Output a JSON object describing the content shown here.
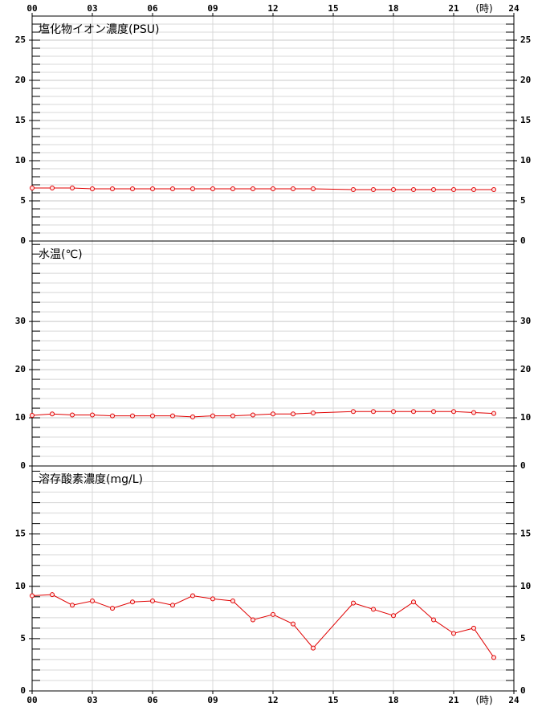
{
  "chart_data": [
    {
      "type": "line",
      "title": "塩化物イオン濃度(PSU)",
      "x": [
        0,
        1,
        2,
        3,
        4,
        5,
        6,
        7,
        8,
        9,
        10,
        11,
        12,
        13,
        14,
        16,
        17,
        18,
        19,
        20,
        21,
        22,
        23
      ],
      "series": [
        {
          "color": "#e00000",
          "values": [
            6.6,
            6.6,
            6.6,
            6.5,
            6.5,
            6.5,
            6.5,
            6.5,
            6.5,
            6.5,
            6.5,
            6.5,
            6.5,
            6.5,
            6.5,
            6.4,
            6.4,
            6.4,
            6.4,
            6.4,
            6.4,
            6.4,
            6.4
          ]
        }
      ],
      "xlim": [
        0,
        24
      ],
      "xticks": [
        {
          "value": 0,
          "label": "00"
        },
        {
          "value": 3,
          "label": "03"
        },
        {
          "value": 6,
          "label": "06"
        },
        {
          "value": 9,
          "label": "09"
        },
        {
          "value": 12,
          "label": "12"
        },
        {
          "value": 15,
          "label": "15"
        },
        {
          "value": 18,
          "label": "18"
        },
        {
          "value": 21,
          "label": "21"
        },
        {
          "value": 24,
          "label": "24"
        }
      ],
      "x_label": "(時)",
      "ylim": [
        0,
        28
      ],
      "yticks": [
        0,
        5,
        10,
        15,
        20,
        25
      ],
      "minor_yticks": [
        1,
        2,
        3,
        4,
        6,
        7,
        8,
        9,
        11,
        12,
        13,
        14,
        16,
        17,
        18,
        19,
        21,
        22,
        23,
        24,
        26,
        27,
        28
      ],
      "grid": true
    },
    {
      "type": "line",
      "title": "水温(℃)",
      "x": [
        0,
        1,
        2,
        3,
        4,
        5,
        6,
        7,
        8,
        9,
        10,
        11,
        12,
        13,
        14,
        16,
        17,
        18,
        19,
        20,
        21,
        22,
        23
      ],
      "series": [
        {
          "color": "#e00000",
          "values": [
            10.5,
            10.8,
            10.6,
            10.6,
            10.4,
            10.4,
            10.4,
            10.4,
            10.2,
            10.4,
            10.4,
            10.6,
            10.8,
            10.8,
            11.0,
            11.3,
            11.3,
            11.3,
            11.3,
            11.3,
            11.3,
            11.1,
            10.9
          ]
        }
      ],
      "xlim": [
        0,
        24
      ],
      "ylim": [
        0,
        46.7
      ],
      "yticks": [
        0,
        10,
        20,
        30
      ],
      "minor_yticks": [
        2,
        4,
        6,
        8,
        12,
        14,
        16,
        18,
        22,
        24,
        26,
        28,
        32,
        34,
        36,
        38,
        40,
        42,
        44,
        46
      ],
      "grid": true
    },
    {
      "type": "line",
      "title": "溶存酸素濃度(mg/L)",
      "x": [
        0,
        1,
        2,
        3,
        4,
        5,
        6,
        7,
        8,
        9,
        10,
        11,
        12,
        13,
        14,
        16,
        17,
        18,
        19,
        20,
        21,
        22,
        23
      ],
      "series": [
        {
          "color": "#e00000",
          "values": [
            9.1,
            9.2,
            8.2,
            8.6,
            7.9,
            8.5,
            8.6,
            8.2,
            9.1,
            8.8,
            8.6,
            6.8,
            7.3,
            6.4,
            4.1,
            8.4,
            7.8,
            7.2,
            8.5,
            6.8,
            5.5,
            6.0,
            3.2
          ]
        }
      ],
      "xlim": [
        0,
        24
      ],
      "xticks": [
        {
          "value": 0,
          "label": "00"
        },
        {
          "value": 3,
          "label": "03"
        },
        {
          "value": 6,
          "label": "06"
        },
        {
          "value": 9,
          "label": "09"
        },
        {
          "value": 12,
          "label": "12"
        },
        {
          "value": 15,
          "label": "15"
        },
        {
          "value": 18,
          "label": "18"
        },
        {
          "value": 21,
          "label": "21"
        },
        {
          "value": 24,
          "label": "24"
        }
      ],
      "x_label": "(時)",
      "ylim": [
        0,
        21.5
      ],
      "yticks": [
        0,
        5,
        10,
        15
      ],
      "minor_yticks": [
        1,
        2,
        3,
        4,
        6,
        7,
        8,
        9,
        11,
        12,
        13,
        14,
        16,
        17,
        18,
        19,
        20,
        21
      ],
      "grid": true
    }
  ]
}
